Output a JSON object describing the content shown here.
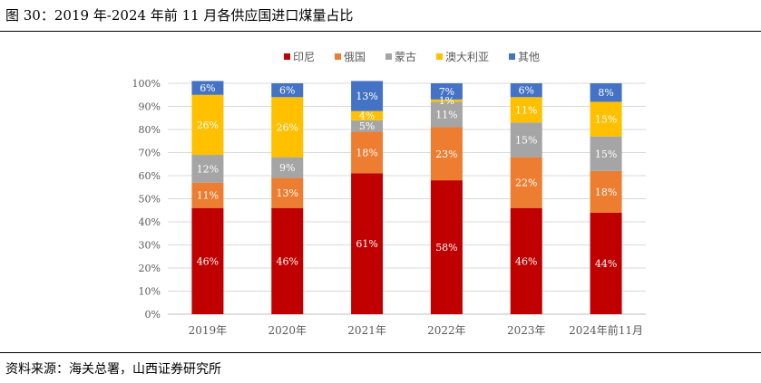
{
  "figure_title": "图 30：2019 年-2024 年前 11 月各供应国进口煤量占比",
  "source": "资料来源：海关总署，山西证券研究所",
  "chart_data": {
    "type": "bar",
    "stacked": true,
    "title": "",
    "xlabel": "",
    "ylabel": "",
    "ylim": [
      0,
      100
    ],
    "ytick_labels": [
      "0%",
      "10%",
      "20%",
      "30%",
      "40%",
      "50%",
      "60%",
      "70%",
      "80%",
      "90%",
      "100%"
    ],
    "categories": [
      "2019年",
      "2020年",
      "2021年",
      "2022年",
      "2023年",
      "2024年前11月"
    ],
    "legend_position": "top",
    "series": [
      {
        "name": "印尼",
        "color": "#C00000",
        "label_color": "#ffffff",
        "values": [
          46,
          46,
          61,
          58,
          46,
          44
        ],
        "labels": [
          "46%",
          "46%",
          "61%",
          "58%",
          "46%",
          "44%"
        ]
      },
      {
        "name": "俄国",
        "color": "#ED7D31",
        "label_color": "#ffffff",
        "values": [
          11,
          13,
          18,
          23,
          22,
          18
        ],
        "labels": [
          "11%",
          "13%",
          "18%",
          "23%",
          "22%",
          "18%"
        ]
      },
      {
        "name": "蒙古",
        "color": "#A5A5A5",
        "label_color": "#ffffff",
        "values": [
          12,
          9,
          5,
          11,
          15,
          15
        ],
        "labels": [
          "12%",
          "9%",
          "5%",
          "11%",
          "15%",
          "15%"
        ]
      },
      {
        "name": "澳大利亚",
        "color": "#FFC000",
        "label_color": "#ffffff",
        "values": [
          26,
          26,
          4,
          1,
          11,
          15
        ],
        "labels": [
          "26%",
          "26%",
          "4%",
          "1%",
          "11%",
          "15%"
        ]
      },
      {
        "name": "其他",
        "color": "#4472C4",
        "label_color": "#ffffff",
        "values": [
          6,
          6,
          13,
          7,
          6,
          8
        ],
        "labels": [
          "6%",
          "6%",
          "13%",
          "7%",
          "6%",
          "8%"
        ]
      }
    ]
  }
}
